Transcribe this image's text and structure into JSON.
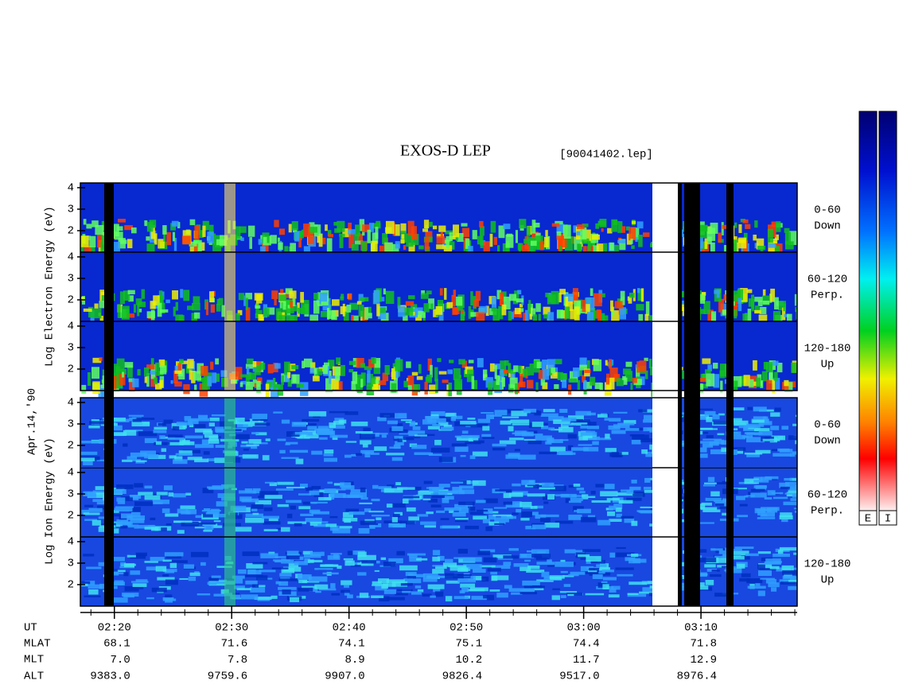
{
  "header": {
    "title": "EXOS-D LEP",
    "file": "[90041402.lep]"
  },
  "date": "Apr.14,'90",
  "electron_label": "Log Electron Energy (eV)",
  "ion_label": "Log Ion Energy (eV)",
  "y_axis": {
    "ylim": [
      1,
      4.22
    ],
    "yticks": [
      2,
      3,
      4
    ]
  },
  "pitch_angle_labels": [
    {
      "range": "0-60",
      "direction": "Down"
    },
    {
      "range": "60-120",
      "direction": "Perp."
    },
    {
      "range": "120-180",
      "direction": "Up"
    },
    {
      "range": "0-60",
      "direction": "Down"
    },
    {
      "range": "60-120",
      "direction": "Perp."
    },
    {
      "range": "120-180",
      "direction": "Up"
    }
  ],
  "x_axis": {
    "xlim": [
      17.1,
      78.2
    ],
    "xticks": [
      {
        "value": 20,
        "label": "02:20"
      },
      {
        "value": 30,
        "label": "02:30"
      },
      {
        "value": 40,
        "label": "02:40"
      },
      {
        "value": 50,
        "label": "02:50"
      },
      {
        "value": 60,
        "label": "03:00"
      },
      {
        "value": 70,
        "label": "03:10"
      }
    ]
  },
  "ephemeris": {
    "row_names": [
      "UT",
      "MLAT",
      "MLT",
      "ALT"
    ],
    "rows": [
      [
        "68.1",
        "71.6",
        "74.1",
        "75.1",
        "74.4",
        "71.8"
      ],
      [
        "7.0",
        "7.8",
        "8.9",
        "10.2",
        "11.7",
        "12.9"
      ],
      [
        "9383.0",
        "9759.6",
        "9907.0",
        "9826.4",
        "9517.0",
        "8976.4"
      ]
    ]
  },
  "colorbars": [
    "E",
    "I"
  ]
}
